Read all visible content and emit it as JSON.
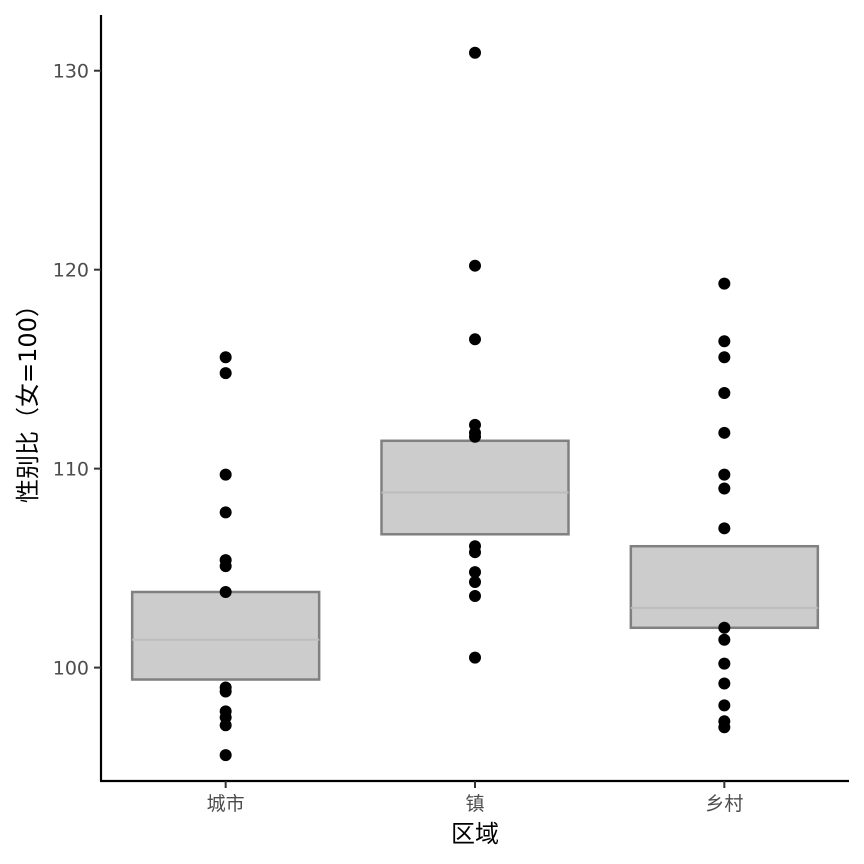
{
  "chart_data": {
    "type": "box",
    "title": "",
    "xlabel": "区域",
    "ylabel": "性别比（女=100）",
    "categories": [
      "城市",
      "镇",
      "乡村"
    ],
    "ylim": [
      94.3,
      132.8
    ],
    "yticks": [
      100,
      110,
      120,
      130
    ],
    "grid": false,
    "legend": "none",
    "box_style": {
      "fill": "#cccccc",
      "stroke": "#808080",
      "median_color": "#bdbdbd"
    },
    "point_color": "#000000",
    "series": [
      {
        "category": "城市",
        "box": {
          "q1": 99.4,
          "median": 101.4,
          "q3": 103.8
        },
        "points": [
          115.6,
          114.8,
          109.7,
          107.8,
          105.4,
          105.1,
          103.8,
          99.0,
          98.8,
          97.8,
          97.5,
          97.1,
          95.6
        ]
      },
      {
        "category": "镇",
        "box": {
          "q1": 106.7,
          "median": 108.8,
          "q3": 111.4
        },
        "points": [
          130.9,
          120.2,
          116.5,
          112.2,
          111.8,
          111.6,
          106.1,
          105.8,
          104.8,
          104.3,
          103.6,
          100.5
        ]
      },
      {
        "category": "乡村",
        "box": {
          "q1": 102.0,
          "median": 103.0,
          "q3": 106.1
        },
        "points": [
          119.3,
          116.4,
          115.6,
          113.8,
          111.8,
          109.7,
          109.0,
          107.0,
          102.0,
          101.4,
          100.2,
          99.2,
          98.1,
          97.3,
          97.0
        ]
      }
    ]
  }
}
